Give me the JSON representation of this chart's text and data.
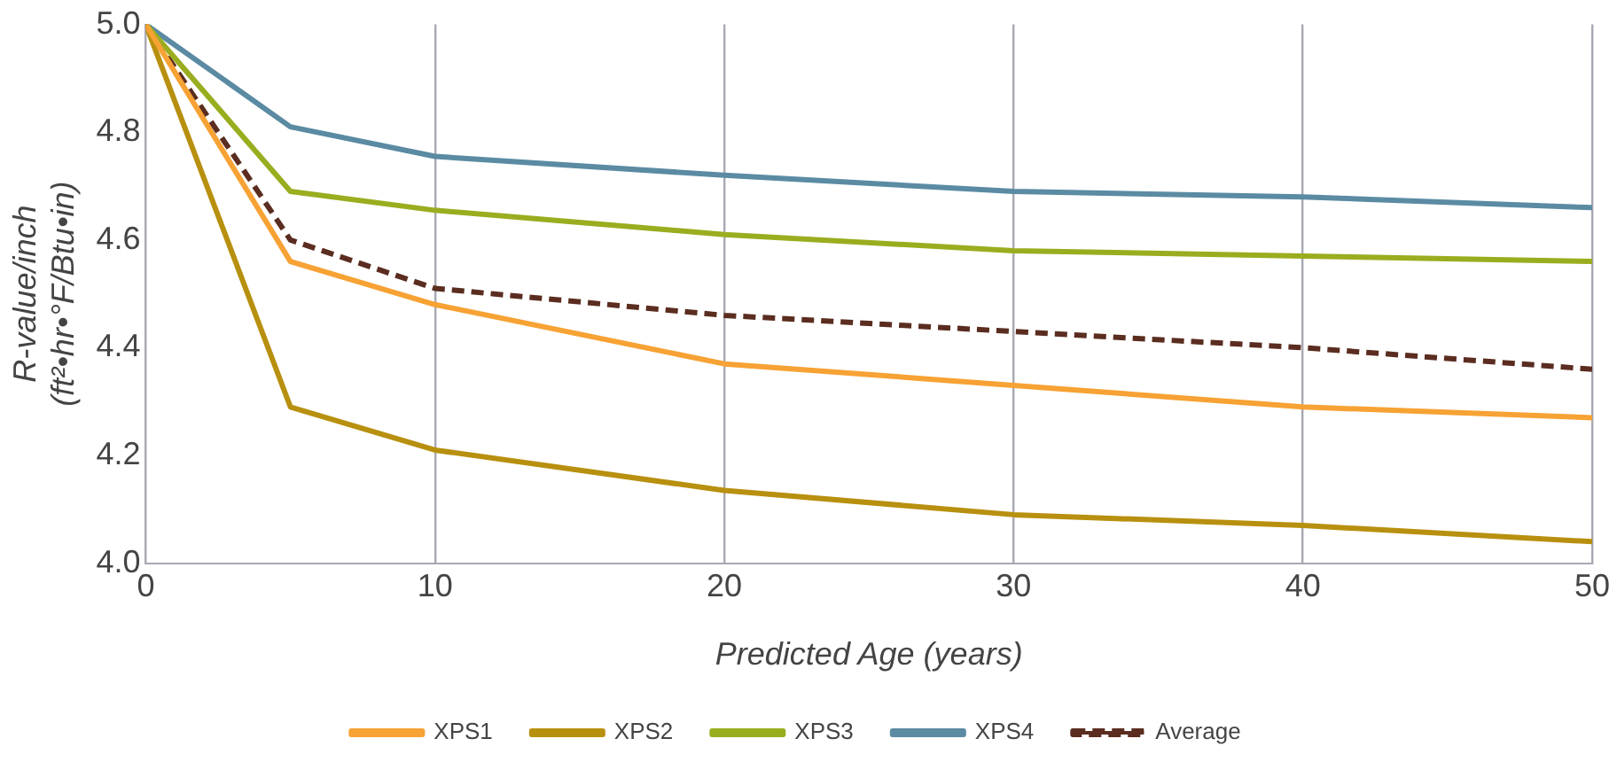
{
  "chart_data": {
    "type": "line",
    "xlabel": "Predicted Age (years)",
    "ylabel": "R-value/inch\n(ft²•hr•°F/Btu•in)",
    "x": [
      0,
      5,
      10,
      20,
      30,
      40,
      50
    ],
    "series": [
      {
        "name": "XPS1",
        "color": "#f7a234",
        "values": [
          5.0,
          4.56,
          4.48,
          4.37,
          4.33,
          4.29,
          4.27
        ]
      },
      {
        "name": "XPS2",
        "color": "#b8900f",
        "values": [
          5.0,
          4.29,
          4.21,
          4.135,
          4.09,
          4.07,
          4.04
        ]
      },
      {
        "name": "XPS3",
        "color": "#9aad1f",
        "values": [
          5.0,
          4.69,
          4.655,
          4.61,
          4.58,
          4.57,
          4.56
        ]
      },
      {
        "name": "XPS4",
        "color": "#5b8ba3",
        "values": [
          5.0,
          4.81,
          4.755,
          4.72,
          4.69,
          4.68,
          4.66
        ]
      },
      {
        "name": "Average",
        "color": "#5a2d20",
        "line_style": "dashed",
        "values": [
          5.0,
          4.6,
          4.51,
          4.46,
          4.43,
          4.4,
          4.36
        ]
      }
    ],
    "xlim": [
      0,
      50
    ],
    "xticks": [
      0,
      10,
      20,
      30,
      40,
      50
    ],
    "ylim": [
      4.0,
      5.0
    ],
    "yticks": [
      {
        "value": 4.0,
        "label": "4.0"
      },
      {
        "value": 4.2,
        "label": "4.2"
      },
      {
        "value": 4.4,
        "label": "4.4"
      },
      {
        "value": 4.6,
        "label": "4.6"
      },
      {
        "value": 4.8,
        "label": "4.8"
      },
      {
        "value": 5.0,
        "label": "5.0"
      }
    ],
    "grid": "x",
    "legend": "bottom",
    "marker": "none",
    "line_style": "solid"
  }
}
